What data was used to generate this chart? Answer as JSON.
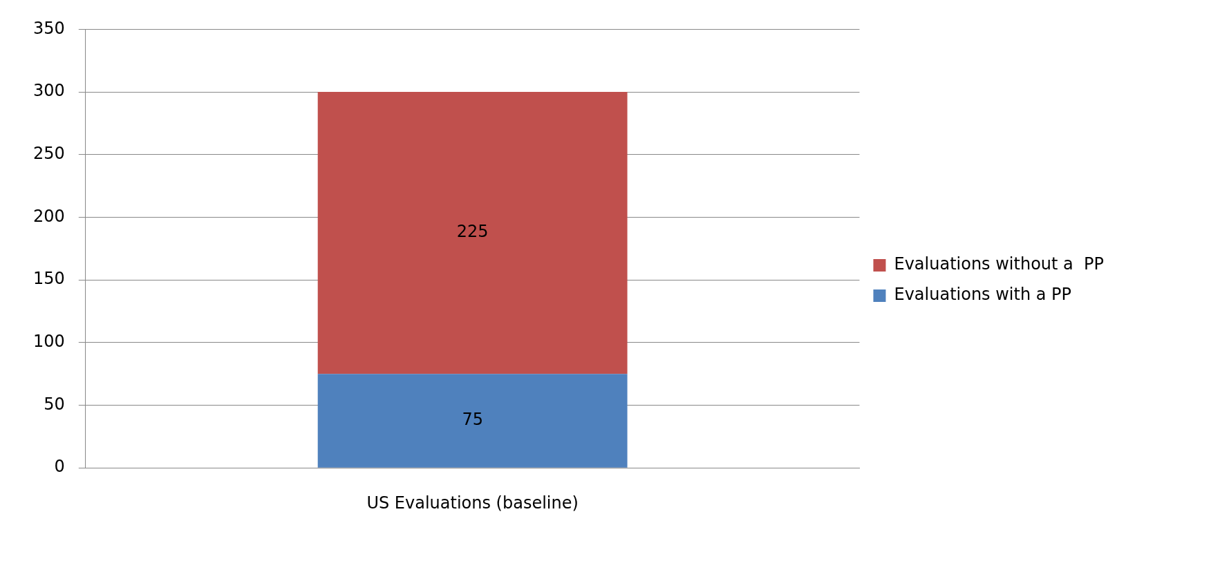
{
  "chart_data": {
    "type": "bar",
    "stacked": true,
    "categories": [
      "US Evaluations (baseline)"
    ],
    "series": [
      {
        "name": "Evaluations with a PP",
        "color": "#4f81bd",
        "values": [
          75
        ]
      },
      {
        "name": "Evaluations without a  PP",
        "color": "#c0504d",
        "values": [
          225
        ]
      }
    ],
    "ylim": [
      0,
      350
    ],
    "yticks": [
      0,
      50,
      100,
      150,
      200,
      250,
      300,
      350
    ],
    "grid": "y",
    "legend": "right",
    "data_labels": true
  }
}
